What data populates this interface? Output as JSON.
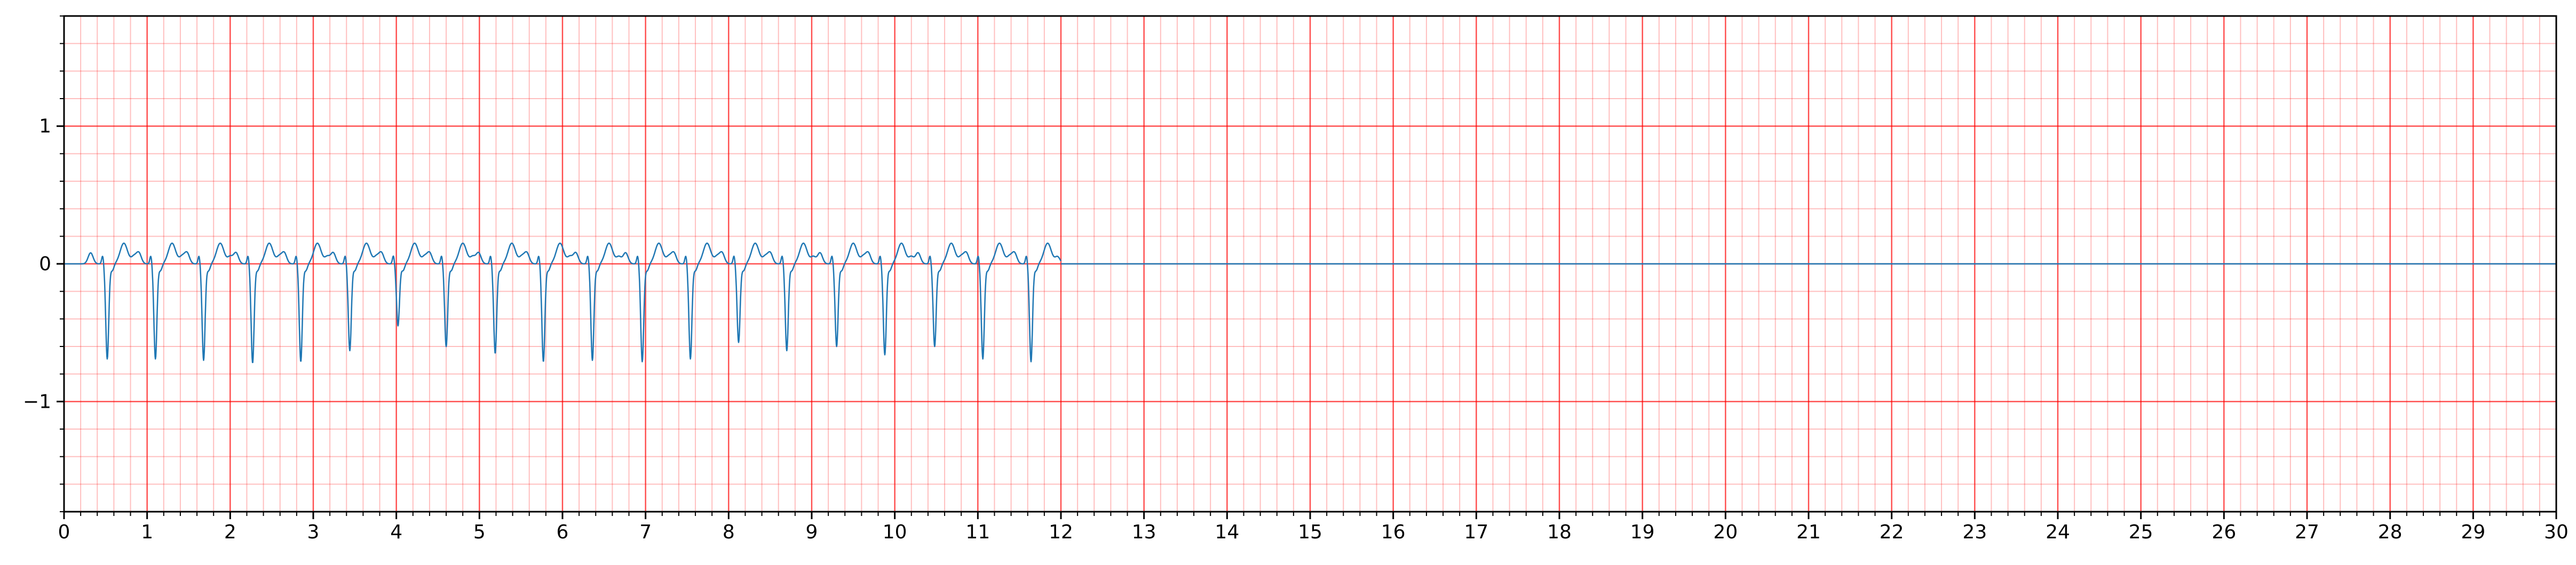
{
  "chart_data": {
    "type": "line",
    "title": "",
    "xlabel": "",
    "ylabel": "",
    "xlim": [
      0,
      30
    ],
    "ylim": [
      -1.8,
      1.8
    ],
    "x_ticks": [
      "0",
      "1",
      "2",
      "3",
      "4",
      "5",
      "6",
      "7",
      "8",
      "9",
      "10",
      "11",
      "12",
      "13",
      "14",
      "15",
      "16",
      "17",
      "18",
      "19",
      "20",
      "21",
      "22",
      "23",
      "24",
      "25",
      "26",
      "27",
      "28",
      "29",
      "30"
    ],
    "y_ticks": [
      "−1",
      "0",
      "1"
    ],
    "y_tick_values": [
      -1,
      0,
      1
    ],
    "grid": {
      "major": true,
      "minor": true,
      "major_x_step": 1,
      "minor_x_step": 0.2,
      "major_y_step": 1,
      "minor_y_step": 0.2,
      "major_color": "#ff0000",
      "minor_color": "#ff0000"
    },
    "series": [
      {
        "color": "#1f77b4",
        "signal_end": 12.0,
        "baseline_end": 30.0,
        "beat_times": [
          0.52,
          1.1,
          1.68,
          2.27,
          2.85,
          3.44,
          4.02,
          4.6,
          5.19,
          5.77,
          6.36,
          6.96,
          7.54,
          8.12,
          8.7,
          9.3,
          9.88,
          10.48,
          11.06,
          11.64
        ],
        "beat_amplitudes": [
          -0.69,
          -0.69,
          -0.7,
          -0.72,
          -0.71,
          -0.63,
          -0.45,
          -0.6,
          -0.65,
          -0.71,
          -0.7,
          -0.71,
          -0.69,
          -0.57,
          -0.63,
          -0.6,
          -0.66,
          -0.6,
          -0.69,
          -0.71
        ],
        "t_wave_peak": 0.15,
        "p_wave_peak": 0.08,
        "baseline_value": 0
      }
    ]
  }
}
